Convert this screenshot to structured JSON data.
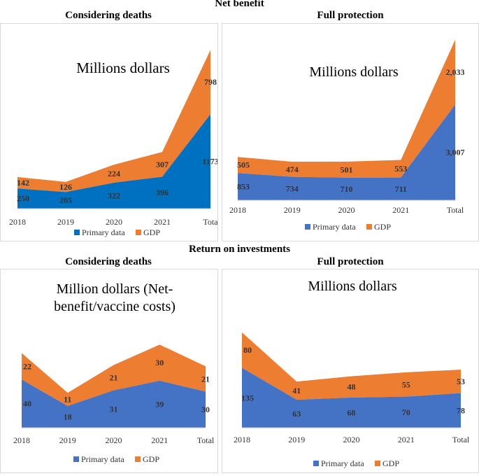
{
  "sections": [
    {
      "title": "Net benefit"
    },
    {
      "title": "Return on investments"
    }
  ],
  "colors": {
    "primary": "#4472C4",
    "gdp": "#ED7D31"
  },
  "chart_data": [
    {
      "type": "area",
      "stacked": true,
      "title": "Considering deaths",
      "annotation": "Millions dollars",
      "categories": [
        "2018",
        "2019",
        "2020",
        "2021",
        "Total"
      ],
      "tick_labels": [
        "2018",
        "2019",
        "2020",
        "2021",
        "Tota"
      ],
      "series": [
        {
          "name": "Primary data",
          "values": [
            250,
            205,
            322,
            396,
            1173
          ],
          "labels": [
            "250",
            "205",
            "322",
            "396",
            "1173"
          ],
          "color": "#0070C0"
        },
        {
          "name": "GDP",
          "values": [
            142,
            126,
            224,
            307,
            798
          ],
          "labels": [
            "142",
            "126",
            "224",
            "307",
            "798"
          ],
          "color": "#ED7D31"
        }
      ],
      "ylim": [
        0,
        2000
      ],
      "legend_position": "bottom",
      "xlabel": "",
      "ylabel": ""
    },
    {
      "type": "area",
      "stacked": true,
      "title": "Full protection",
      "annotation": "Millions dollars",
      "categories": [
        "2018",
        "2019",
        "2020",
        "2021",
        "Total"
      ],
      "tick_labels": [
        "2018",
        "2019",
        "2020",
        "2021",
        "Total"
      ],
      "series": [
        {
          "name": "Primary data",
          "values": [
            853,
            734,
            710,
            711,
            3007
          ],
          "labels": [
            "853",
            "734",
            "710",
            "711",
            "3,007"
          ],
          "color": "#4472C4"
        },
        {
          "name": "GDP",
          "values": [
            505,
            474,
            501,
            553,
            2033
          ],
          "labels": [
            "505",
            "474",
            "501",
            "553",
            "2,033"
          ],
          "color": "#ED7D31"
        }
      ],
      "ylim": [
        0,
        5100
      ],
      "legend_position": "bottom",
      "xlabel": "",
      "ylabel": ""
    },
    {
      "type": "area",
      "stacked": true,
      "title": "Considering deaths",
      "annotation": "Million dollars (Net-benefit/vaccine costs)",
      "annotation_lines": [
        "Million dollars (Net-",
        "benefit/vaccine costs)"
      ],
      "categories": [
        "2018",
        "2019",
        "2020",
        "2021",
        "Total"
      ],
      "tick_labels": [
        "2018",
        "2019",
        "2020",
        "2021",
        "Total"
      ],
      "series": [
        {
          "name": "Primary data",
          "values": [
            40,
            18,
            31,
            39,
            30
          ],
          "labels": [
            "40",
            "18",
            "31",
            "39",
            "30"
          ],
          "color": "#4472C4"
        },
        {
          "name": "GDP",
          "values": [
            22,
            11,
            21,
            30,
            21
          ],
          "labels": [
            "22",
            "11",
            "21",
            "30",
            "21"
          ],
          "color": "#ED7D31"
        }
      ],
      "ylim": [
        0,
        125
      ],
      "legend_position": "bottom",
      "xlabel": "",
      "ylabel": ""
    },
    {
      "type": "area",
      "stacked": true,
      "title": "Full protection",
      "annotation": "Millions dollars",
      "categories": [
        "2018",
        "2019",
        "2020",
        "2021",
        "Total"
      ],
      "tick_labels": [
        "2018",
        "2019",
        "2020",
        "2021",
        "Total"
      ],
      "series": [
        {
          "name": "Primary data",
          "values": [
            135,
            63,
            68,
            70,
            78
          ],
          "labels": [
            "135",
            "63",
            "68",
            "70",
            "78"
          ],
          "color": "#4472C4"
        },
        {
          "name": "GDP",
          "values": [
            80,
            41,
            48,
            55,
            53
          ],
          "labels": [
            "80",
            "41",
            "48",
            "55",
            "53"
          ],
          "color": "#ED7D31"
        }
      ],
      "ylim": [
        0,
        300
      ],
      "legend_position": "bottom",
      "xlabel": "",
      "ylabel": ""
    }
  ]
}
